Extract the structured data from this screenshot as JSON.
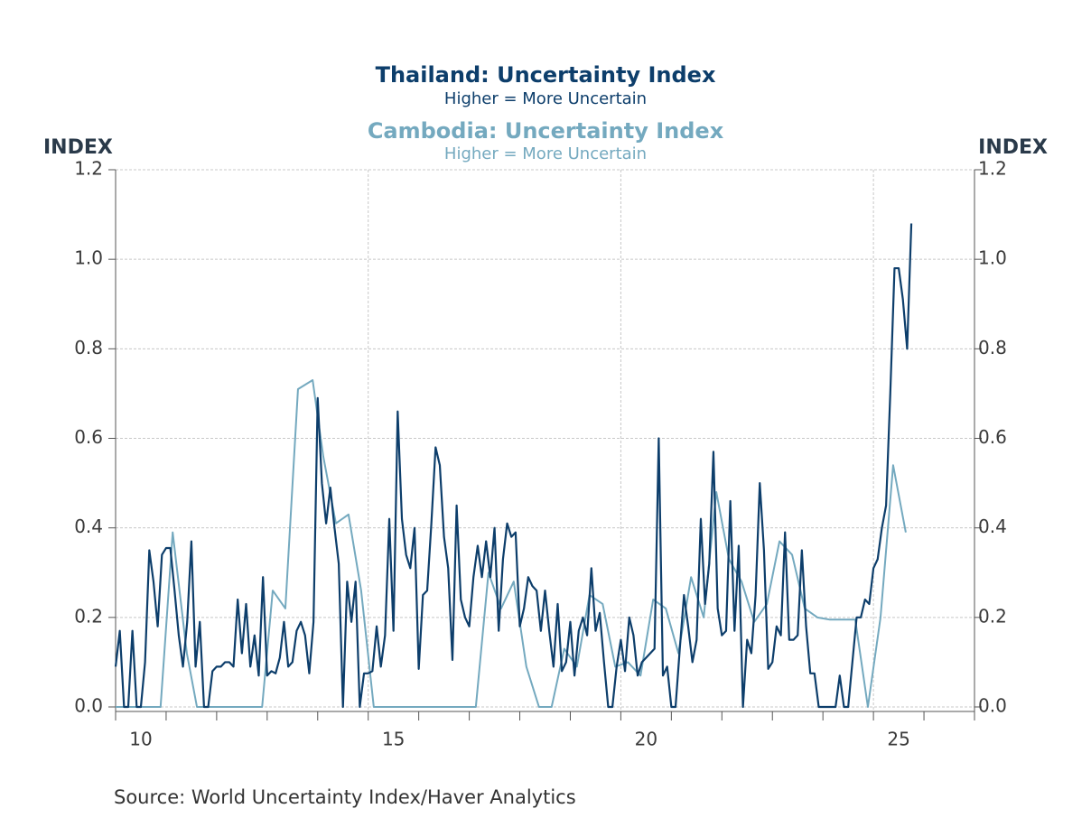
{
  "chart_data": {
    "type": "line",
    "series": [
      {
        "name": "Thailand: Uncertainty Index",
        "subtitle": "Higher = More Uncertain",
        "color": "#0d3e6b",
        "axis": "y",
        "x": [
          2010,
          2010.083,
          2010.167,
          2010.25,
          2010.333,
          2010.417,
          2010.5,
          2010.583,
          2010.667,
          2010.75,
          2010.833,
          2010.917,
          2011,
          2011.083,
          2011.167,
          2011.25,
          2011.333,
          2011.417,
          2011.5,
          2011.583,
          2011.667,
          2011.75,
          2011.833,
          2011.917,
          2012,
          2012.083,
          2012.167,
          2012.25,
          2012.333,
          2012.417,
          2012.5,
          2012.583,
          2012.667,
          2012.75,
          2012.833,
          2012.917,
          2013,
          2013.083,
          2013.167,
          2013.25,
          2013.333,
          2013.417,
          2013.5,
          2013.583,
          2013.667,
          2013.75,
          2013.833,
          2013.917,
          2014,
          2014.083,
          2014.167,
          2014.25,
          2014.333,
          2014.417,
          2014.5,
          2014.583,
          2014.667,
          2014.75,
          2014.833,
          2014.917,
          2015,
          2015.083,
          2015.167,
          2015.25,
          2015.333,
          2015.417,
          2015.5,
          2015.583,
          2015.667,
          2015.75,
          2015.833,
          2015.917,
          2016,
          2016.083,
          2016.167,
          2016.25,
          2016.333,
          2016.417,
          2016.5,
          2016.583,
          2016.667,
          2016.75,
          2016.833,
          2016.917,
          2017,
          2017.083,
          2017.167,
          2017.25,
          2017.333,
          2017.417,
          2017.5,
          2017.583,
          2017.667,
          2017.75,
          2017.833,
          2017.917,
          2018,
          2018.083,
          2018.167,
          2018.25,
          2018.333,
          2018.417,
          2018.5,
          2018.583,
          2018.667,
          2018.75,
          2018.833,
          2018.917,
          2019,
          2019.083,
          2019.167,
          2019.25,
          2019.333,
          2019.417,
          2019.5,
          2019.583,
          2019.667,
          2019.75,
          2019.833,
          2019.917,
          2020,
          2020.083,
          2020.167,
          2020.25,
          2020.333,
          2020.417,
          2020.5,
          2020.583,
          2020.667,
          2020.75,
          2020.833,
          2020.917,
          2021,
          2021.083,
          2021.167,
          2021.25,
          2021.333,
          2021.417,
          2021.5,
          2021.583,
          2021.667,
          2021.75,
          2021.833,
          2021.917,
          2022,
          2022.083,
          2022.167,
          2022.25,
          2022.333,
          2022.417,
          2022.5,
          2022.583,
          2022.667,
          2022.75,
          2022.833,
          2022.917,
          2023,
          2023.083,
          2023.167,
          2023.25,
          2023.333,
          2023.417,
          2023.5,
          2023.583,
          2023.667,
          2023.75,
          2023.833,
          2023.917,
          2024,
          2024.083,
          2024.167,
          2024.25,
          2024.333,
          2024.417,
          2024.5,
          2024.583,
          2024.667,
          2024.75,
          2024.833,
          2024.917,
          2025,
          2025.083,
          2025.167,
          2025.25,
          2025.333,
          2025.417,
          2025.5,
          2025.583,
          2025.667,
          2025.75
        ],
        "values": [
          0.09,
          0.17,
          0,
          0,
          0.17,
          0,
          0,
          0.1,
          0.35,
          0.28,
          0.18,
          0.34,
          0.355,
          0.355,
          0.26,
          0.16,
          0.09,
          0.19,
          0.37,
          0.09,
          0.19,
          0,
          0,
          0.08,
          0.09,
          0.09,
          0.1,
          0.1,
          0.09,
          0.24,
          0.12,
          0.23,
          0.09,
          0.16,
          0.07,
          0.29,
          0.07,
          0.08,
          0.075,
          0.11,
          0.19,
          0.09,
          0.1,
          0.17,
          0.19,
          0.16,
          0.075,
          0.19,
          0.69,
          0.5,
          0.41,
          0.49,
          0.4,
          0.32,
          0,
          0.28,
          0.19,
          0.28,
          0,
          0.075,
          0.075,
          0.08,
          0.18,
          0.09,
          0.16,
          0.42,
          0.17,
          0.66,
          0.42,
          0.34,
          0.31,
          0.4,
          0.085,
          0.25,
          0.26,
          0.41,
          0.58,
          0.54,
          0.38,
          0.31,
          0.105,
          0.45,
          0.24,
          0.2,
          0.18,
          0.29,
          0.36,
          0.29,
          0.37,
          0.29,
          0.4,
          0.17,
          0.33,
          0.41,
          0.38,
          0.39,
          0.18,
          0.22,
          0.29,
          0.27,
          0.26,
          0.17,
          0.26,
          0.17,
          0.09,
          0.23,
          0.08,
          0.1,
          0.19,
          0.07,
          0.17,
          0.2,
          0.16,
          0.31,
          0.17,
          0.21,
          0.1,
          0,
          0,
          0.09,
          0.15,
          0.08,
          0.2,
          0.16,
          0.07,
          0.1,
          0.11,
          0.12,
          0.13,
          0.6,
          0.07,
          0.09,
          0,
          0,
          0.13,
          0.25,
          0.18,
          0.1,
          0.15,
          0.42,
          0.23,
          0.32,
          0.57,
          0.22,
          0.16,
          0.17,
          0.46,
          0.17,
          0.36,
          0,
          0.15,
          0.12,
          0.25,
          0.5,
          0.35,
          0.085,
          0.1,
          0.18,
          0.16,
          0.39,
          0.15,
          0.15,
          0.16,
          0.35,
          0.18,
          0.075,
          0.075,
          0,
          0,
          0,
          0,
          0,
          0.07,
          0,
          0,
          0.1,
          0.2,
          0.2,
          0.24,
          0.23,
          0.31,
          0.33,
          0.4,
          0.45,
          0.7,
          0.98,
          0.98,
          0.91,
          0.8,
          1.08
        ]
      },
      {
        "name": "Cambodia: Uncertainty Index",
        "subtitle": "Higher = More Uncertain",
        "color": "#74a9bf",
        "axis": "y2",
        "x": [
          2010,
          2010.89,
          2011.13,
          2011.41,
          2011.61,
          2012.9,
          2013.11,
          2013.36,
          2013.61,
          2013.9,
          2014.11,
          2014.36,
          2014.61,
          2014.86,
          2015.11,
          2017.13,
          2017.38,
          2017.63,
          2017.88,
          2018.13,
          2018.38,
          2018.63,
          2018.88,
          2019.13,
          2019.38,
          2019.64,
          2019.89,
          2020.14,
          2020.39,
          2020.64,
          2020.89,
          2021.14,
          2021.39,
          2021.64,
          2021.89,
          2022.14,
          2022.39,
          2022.64,
          2022.89,
          2023.14,
          2023.39,
          2023.64,
          2023.89,
          2024.14,
          2024.64,
          2024.89,
          2025.14,
          2025.39,
          2025.64
        ],
        "values": [
          0,
          0,
          0.39,
          0.12,
          0,
          0,
          0.26,
          0.22,
          0.71,
          0.73,
          0.56,
          0.41,
          0.43,
          0.26,
          0,
          0,
          0.3,
          0.22,
          0.28,
          0.09,
          0,
          0,
          0.13,
          0.09,
          0.25,
          0.23,
          0.09,
          0.1,
          0.07,
          0.24,
          0.22,
          0.12,
          0.29,
          0.2,
          0.48,
          0.33,
          0.28,
          0.19,
          0.23,
          0.37,
          0.34,
          0.22,
          0.2,
          0.195,
          0.195,
          0,
          0.2,
          0.54,
          0.39
        ]
      }
    ],
    "ylabel": "INDEX",
    "y2label": "INDEX",
    "xlim": [
      2010,
      2027
    ],
    "xticks": [
      {
        "value": 2010.5,
        "label": "10"
      },
      {
        "value": 2015.5,
        "label": "15"
      },
      {
        "value": 2020.5,
        "label": "20"
      },
      {
        "value": 2025.5,
        "label": "25"
      }
    ],
    "xminorticks": [
      2010,
      2011,
      2012,
      2013,
      2014,
      2015,
      2016,
      2017,
      2018,
      2019,
      2020,
      2021,
      2022,
      2023,
      2024,
      2025,
      2026,
      2027
    ],
    "xgrid": [
      2015,
      2020,
      2025
    ],
    "ylim": [
      0,
      1.2
    ],
    "yticks": [
      {
        "value": 0,
        "label": "0.0"
      },
      0.2,
      0.4,
      0.6,
      0.8,
      {
        "value": 1,
        "label": "1.0"
      },
      1.2
    ],
    "y2lim": [
      0,
      1.2
    ],
    "y2ticks": [
      {
        "value": 0,
        "label": "0.0"
      },
      0.2,
      0.4,
      0.6,
      0.8,
      {
        "value": 1,
        "label": "1.0"
      },
      1.2
    ],
    "grid": true,
    "source": "Source:  World Uncertainty Index/Haver Analytics"
  }
}
